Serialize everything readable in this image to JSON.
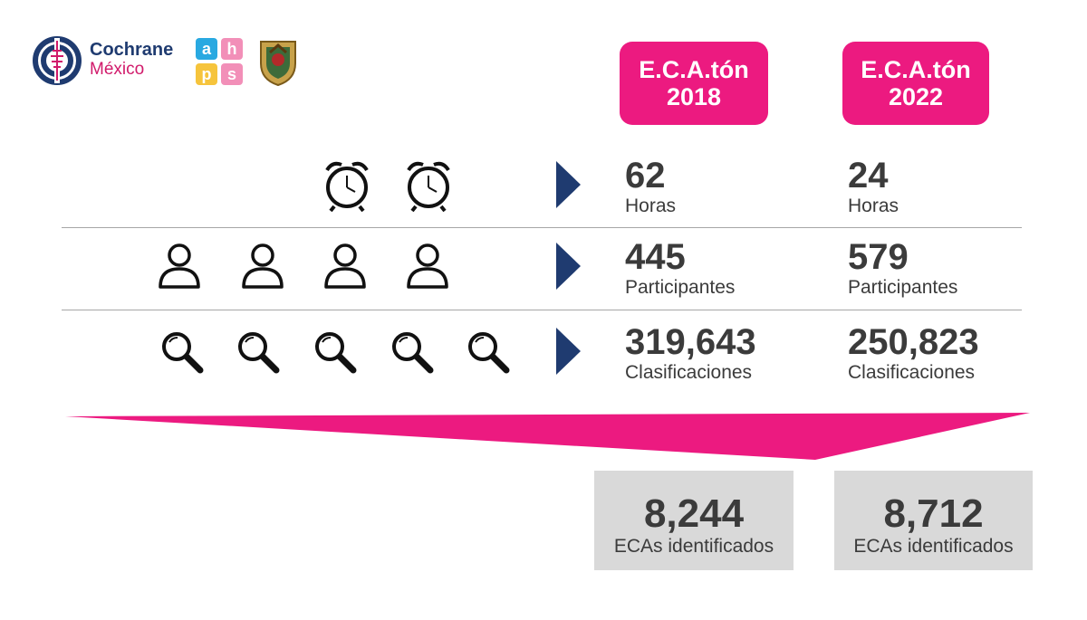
{
  "logos": {
    "cochrane_line1": "Cochrane",
    "cochrane_line2": "México",
    "hps_letters": [
      "a",
      "h",
      "p",
      "s"
    ]
  },
  "columns": [
    {
      "title_line1": "E.C.A.tón",
      "title_line2": "2018"
    },
    {
      "title_line1": "E.C.A.tón",
      "title_line2": "2022"
    }
  ],
  "rows": [
    {
      "icon": "alarm-clock-icon",
      "icon_count": 2,
      "values": [
        {
          "number": "62",
          "label": "Horas"
        },
        {
          "number": "24",
          "label": "Horas"
        }
      ]
    },
    {
      "icon": "person-icon",
      "icon_count": 4,
      "values": [
        {
          "number": "445",
          "label": "Participantes"
        },
        {
          "number": "579",
          "label": "Participantes"
        }
      ]
    },
    {
      "icon": "magnifier-icon",
      "icon_count": 5,
      "values": [
        {
          "number": "319,643",
          "label": "Clasificaciones"
        },
        {
          "number": "250,823",
          "label": "Clasificaciones"
        }
      ]
    }
  ],
  "results": [
    {
      "number": "8,244",
      "label": "ECAs identificados"
    },
    {
      "number": "8,712",
      "label": "ECAs identificados"
    }
  ],
  "colors": {
    "accent_pink": "#ec1a80",
    "navy": "#1f3b70",
    "text": "#3b3b3b",
    "result_bg": "#d9d9d9"
  }
}
